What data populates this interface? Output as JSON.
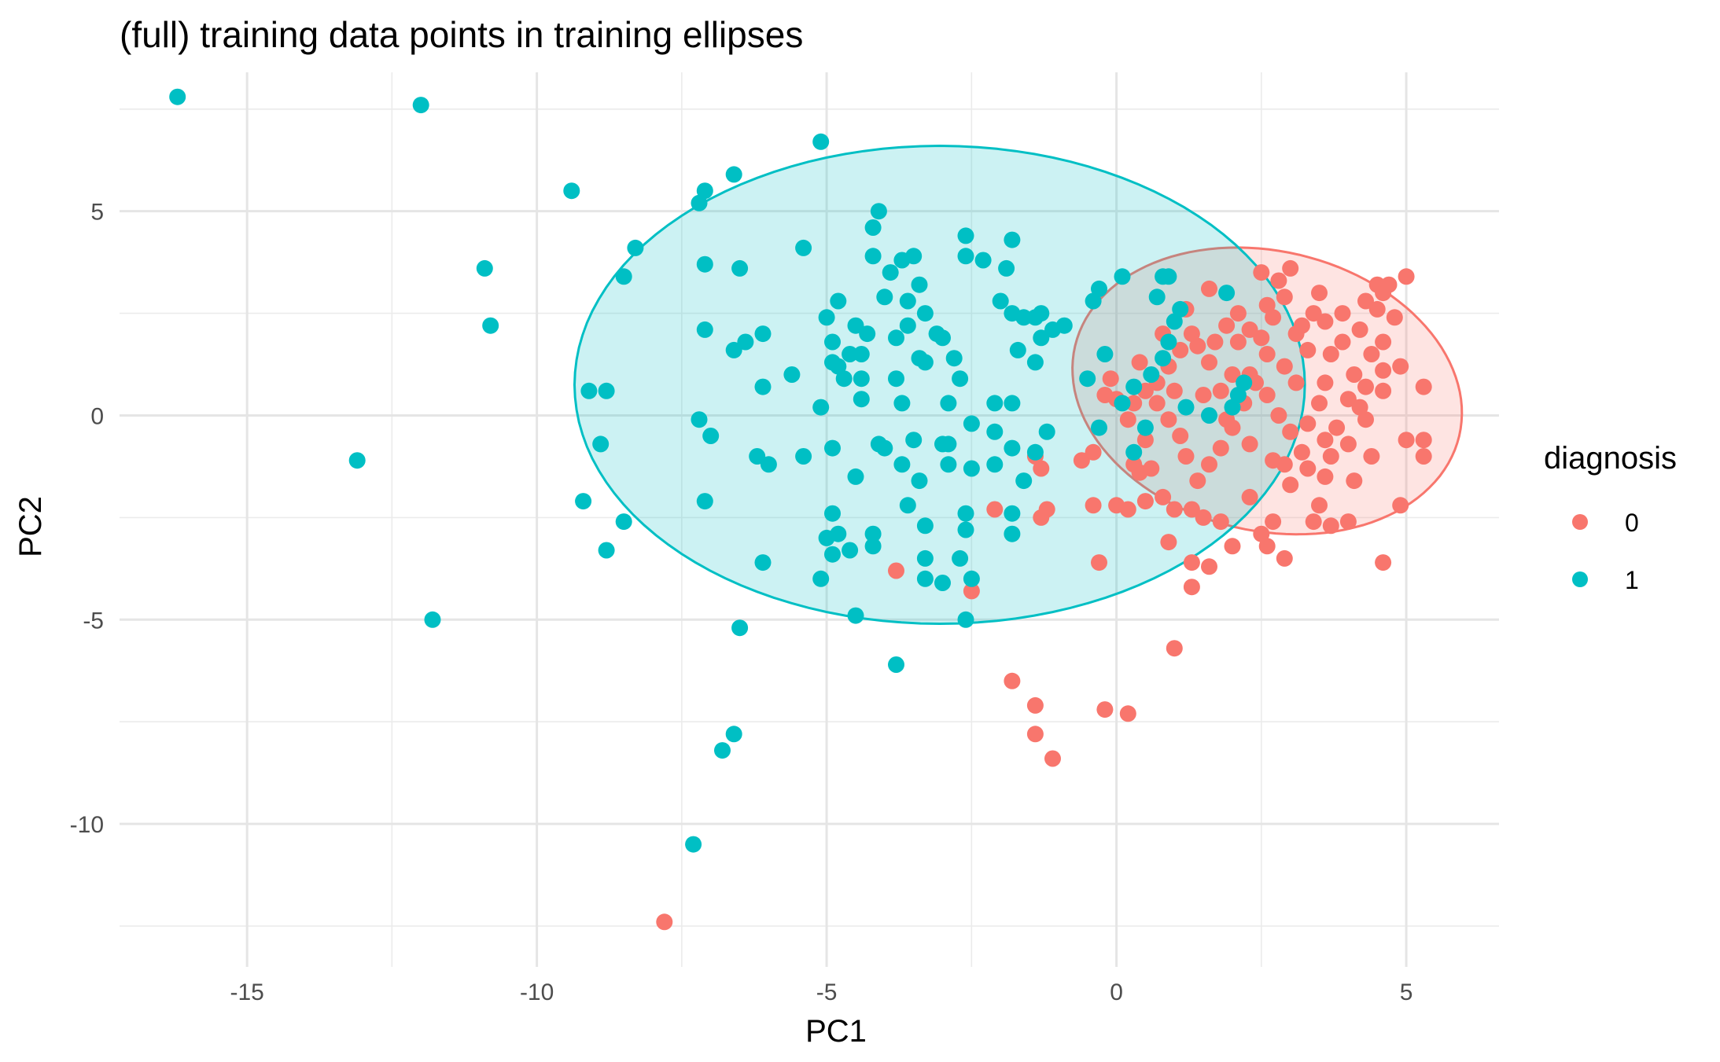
{
  "chart_data": {
    "type": "scatter",
    "title": "(full) training data points in training ellipses",
    "xlabel": "PC1",
    "ylabel": "PC2",
    "xlim": [
      -17.2,
      6.6
    ],
    "ylim": [
      -13.5,
      8.4
    ],
    "x_ticks": [
      -15,
      -10,
      -5,
      0,
      5
    ],
    "x_tick_labels": [
      "-15",
      "-10",
      "-5",
      "0",
      "5"
    ],
    "y_ticks": [
      5,
      0,
      -5,
      -10
    ],
    "y_tick_labels": [
      "5",
      "0",
      "-5",
      "-10"
    ],
    "grid": true,
    "legend": {
      "title": "diagnosis",
      "position": "right",
      "entries": [
        {
          "label": "0",
          "color": "#F8766D"
        },
        {
          "label": "1",
          "color": "#00BFC4"
        }
      ]
    },
    "series": [
      {
        "name": "0",
        "color": "#F8766D",
        "ellipse": {
          "center": [
            2.6,
            0.6
          ],
          "semi_axes": [
            3.15,
            3.7
          ],
          "rotation_deg": 37
        },
        "points": [
          [
            -7.8,
            -12.4
          ],
          [
            -1.8,
            -6.5
          ],
          [
            -1.4,
            -7.1
          ],
          [
            -1.4,
            -7.8
          ],
          [
            -1.1,
            -8.4
          ],
          [
            -0.2,
            -7.2
          ],
          [
            0.2,
            -7.3
          ],
          [
            1.0,
            -5.7
          ],
          [
            -3.8,
            -3.8
          ],
          [
            -2.5,
            -4.3
          ],
          [
            -2.1,
            -2.3
          ],
          [
            -1.3,
            -2.5
          ],
          [
            -1.2,
            -2.3
          ],
          [
            -1.3,
            -1.3
          ],
          [
            -1.4,
            -1.0
          ],
          [
            -0.6,
            -1.1
          ],
          [
            -0.4,
            -0.9
          ],
          [
            -0.4,
            -2.2
          ],
          [
            -0.3,
            -3.6
          ],
          [
            0.0,
            -2.2
          ],
          [
            0.2,
            -2.3
          ],
          [
            0.4,
            -1.4
          ],
          [
            0.5,
            -2.1
          ],
          [
            0.6,
            -1.3
          ],
          [
            0.8,
            -2.0
          ],
          [
            1.0,
            -2.3
          ],
          [
            1.3,
            -2.3
          ],
          [
            1.5,
            -2.5
          ],
          [
            0.9,
            -3.1
          ],
          [
            1.3,
            -3.6
          ],
          [
            1.3,
            -4.2
          ],
          [
            1.6,
            -3.7
          ],
          [
            2.0,
            -3.2
          ],
          [
            1.8,
            -2.6
          ],
          [
            2.3,
            -2.0
          ],
          [
            2.5,
            -2.9
          ],
          [
            2.7,
            -2.6
          ],
          [
            2.6,
            -3.2
          ],
          [
            2.9,
            -3.5
          ],
          [
            3.4,
            -2.6
          ],
          [
            3.0,
            -1.7
          ],
          [
            2.9,
            -1.2
          ],
          [
            3.3,
            -1.3
          ],
          [
            3.6,
            -1.5
          ],
          [
            3.5,
            -2.2
          ],
          [
            3.7,
            -2.7
          ],
          [
            4.0,
            -2.6
          ],
          [
            4.1,
            -1.6
          ],
          [
            4.4,
            -1.0
          ],
          [
            4.6,
            -3.6
          ],
          [
            4.9,
            -2.2
          ],
          [
            5.0,
            -0.6
          ],
          [
            5.3,
            -0.6
          ],
          [
            5.3,
            -1.0
          ],
          [
            5.0,
            3.4
          ],
          [
            4.5,
            3.2
          ],
          [
            4.3,
            2.8
          ],
          [
            4.6,
            3.0
          ],
          [
            4.7,
            3.2
          ],
          [
            4.8,
            2.4
          ],
          [
            4.6,
            1.8
          ],
          [
            4.6,
            1.1
          ],
          [
            4.3,
            0.7
          ],
          [
            4.3,
            -0.1
          ],
          [
            4.6,
            0.6
          ],
          [
            4.9,
            1.2
          ],
          [
            5.3,
            0.7
          ],
          [
            4.1,
            1.0
          ],
          [
            3.9,
            1.8
          ],
          [
            3.6,
            2.3
          ],
          [
            3.4,
            2.5
          ],
          [
            3.3,
            1.6
          ],
          [
            3.1,
            2.0
          ],
          [
            2.9,
            2.9
          ],
          [
            2.8,
            3.3
          ],
          [
            2.7,
            2.4
          ],
          [
            2.5,
            1.9
          ],
          [
            2.3,
            2.1
          ],
          [
            2.1,
            1.8
          ],
          [
            2.0,
            1.0
          ],
          [
            1.8,
            0.6
          ],
          [
            1.6,
            1.3
          ],
          [
            1.4,
            1.7
          ],
          [
            1.3,
            2.0
          ],
          [
            1.1,
            1.6
          ],
          [
            0.9,
            1.2
          ],
          [
            0.7,
            0.8
          ],
          [
            0.5,
            0.6
          ],
          [
            0.3,
            0.3
          ],
          [
            0.2,
            -0.1
          ],
          [
            0.0,
            0.4
          ],
          [
            -0.2,
            0.5
          ],
          [
            -0.1,
            0.9
          ],
          [
            0.4,
            1.3
          ],
          [
            0.8,
            2.0
          ],
          [
            1.2,
            2.6
          ],
          [
            1.6,
            3.1
          ],
          [
            2.1,
            2.5
          ],
          [
            2.5,
            3.5
          ],
          [
            3.0,
            3.6
          ],
          [
            3.5,
            3.0
          ],
          [
            3.9,
            2.5
          ],
          [
            4.2,
            2.1
          ],
          [
            4.0,
            0.4
          ],
          [
            3.8,
            -0.3
          ],
          [
            3.6,
            -0.6
          ],
          [
            3.3,
            -0.2
          ],
          [
            3.0,
            -0.4
          ],
          [
            2.8,
            0.0
          ],
          [
            2.6,
            0.5
          ],
          [
            2.4,
            0.8
          ],
          [
            2.2,
            0.3
          ],
          [
            2.0,
            -0.3
          ],
          [
            1.8,
            -0.8
          ],
          [
            1.6,
            -1.2
          ],
          [
            1.4,
            -1.6
          ],
          [
            1.2,
            -1.0
          ],
          [
            1.1,
            -0.5
          ],
          [
            0.9,
            -0.1
          ],
          [
            0.7,
            0.3
          ],
          [
            0.5,
            -0.6
          ],
          [
            0.3,
            -1.2
          ],
          [
            1.0,
            0.6
          ],
          [
            1.5,
            0.5
          ],
          [
            1.9,
            -0.1
          ],
          [
            2.3,
            -0.7
          ],
          [
            2.7,
            -1.1
          ],
          [
            3.2,
            -0.9
          ],
          [
            3.7,
            -1.0
          ],
          [
            4.0,
            -0.7
          ],
          [
            4.2,
            0.2
          ],
          [
            3.5,
            0.3
          ],
          [
            3.1,
            0.8
          ],
          [
            2.9,
            1.2
          ],
          [
            2.6,
            1.5
          ],
          [
            2.3,
            1.0
          ],
          [
            1.7,
            1.8
          ],
          [
            1.9,
            2.2
          ],
          [
            2.6,
            2.7
          ],
          [
            3.2,
            2.2
          ],
          [
            3.7,
            1.5
          ],
          [
            4.4,
            1.5
          ],
          [
            4.5,
            2.6
          ],
          [
            3.6,
            0.8
          ]
        ]
      },
      {
        "name": "1",
        "color": "#00BFC4",
        "ellipse": {
          "center": [
            -3.05,
            0.75
          ],
          "semi_axes": [
            6.3,
            5.85
          ],
          "rotation_deg": 0
        },
        "points": [
          [
            -16.2,
            7.8
          ],
          [
            -12.0,
            7.6
          ],
          [
            -9.4,
            5.5
          ],
          [
            -10.9,
            3.6
          ],
          [
            -10.8,
            2.2
          ],
          [
            -13.1,
            -1.1
          ],
          [
            -11.8,
            -5.0
          ],
          [
            -9.1,
            0.6
          ],
          [
            -8.9,
            -0.7
          ],
          [
            -8.8,
            0.6
          ],
          [
            -9.2,
            -2.1
          ],
          [
            -8.8,
            -3.3
          ],
          [
            -8.5,
            -2.6
          ],
          [
            -8.5,
            3.4
          ],
          [
            -8.3,
            4.1
          ],
          [
            -7.2,
            5.2
          ],
          [
            -7.1,
            5.5
          ],
          [
            -7.1,
            3.7
          ],
          [
            -7.1,
            2.1
          ],
          [
            -7.2,
            -0.1
          ],
          [
            -7.0,
            -0.5
          ],
          [
            -7.1,
            -2.1
          ],
          [
            -6.6,
            5.9
          ],
          [
            -6.5,
            3.6
          ],
          [
            -6.6,
            1.6
          ],
          [
            -6.4,
            1.8
          ],
          [
            -6.1,
            2.0
          ],
          [
            -6.1,
            0.7
          ],
          [
            -6.2,
            -1.0
          ],
          [
            -6.0,
            -1.2
          ],
          [
            -6.1,
            -3.6
          ],
          [
            -5.6,
            1.0
          ],
          [
            -5.4,
            -1.0
          ],
          [
            -5.1,
            -4.0
          ],
          [
            -5.4,
            4.1
          ],
          [
            -5.1,
            6.7
          ],
          [
            -5.0,
            2.4
          ],
          [
            -4.9,
            1.8
          ],
          [
            -4.8,
            2.8
          ],
          [
            -4.9,
            1.3
          ],
          [
            -4.8,
            1.2
          ],
          [
            -4.7,
            0.9
          ],
          [
            -4.6,
            1.5
          ],
          [
            -4.5,
            2.2
          ],
          [
            -4.4,
            1.5
          ],
          [
            -4.4,
            0.9
          ],
          [
            -4.3,
            2.0
          ],
          [
            -4.1,
            5.0
          ],
          [
            -4.2,
            3.9
          ],
          [
            -4.2,
            4.6
          ],
          [
            -4.0,
            2.9
          ],
          [
            -3.9,
            3.5
          ],
          [
            -3.8,
            1.9
          ],
          [
            -3.8,
            0.9
          ],
          [
            -3.6,
            2.8
          ],
          [
            -3.7,
            3.8
          ],
          [
            -3.5,
            3.9
          ],
          [
            -3.6,
            2.2
          ],
          [
            -3.4,
            3.2
          ],
          [
            -3.3,
            2.5
          ],
          [
            -3.4,
            1.4
          ],
          [
            -3.3,
            1.3
          ],
          [
            -3.1,
            2.0
          ],
          [
            -3.0,
            1.9
          ],
          [
            -2.8,
            1.4
          ],
          [
            -2.7,
            0.9
          ],
          [
            -2.9,
            0.3
          ],
          [
            -2.6,
            4.4
          ],
          [
            -2.6,
            3.9
          ],
          [
            -2.3,
            3.8
          ],
          [
            -2.0,
            2.8
          ],
          [
            -1.9,
            3.6
          ],
          [
            -1.8,
            4.3
          ],
          [
            -1.8,
            2.5
          ],
          [
            -1.7,
            1.6
          ],
          [
            -1.6,
            2.4
          ],
          [
            -1.4,
            2.4
          ],
          [
            -1.3,
            2.5
          ],
          [
            -1.3,
            1.9
          ],
          [
            -1.4,
            1.3
          ],
          [
            -1.1,
            2.1
          ],
          [
            -0.9,
            2.2
          ],
          [
            -0.4,
            2.8
          ],
          [
            -0.3,
            3.1
          ],
          [
            0.1,
            3.4
          ],
          [
            -0.2,
            1.5
          ],
          [
            -0.5,
            0.9
          ],
          [
            0.3,
            0.7
          ],
          [
            -2.1,
            0.3
          ],
          [
            -1.8,
            0.3
          ],
          [
            -1.8,
            -0.8
          ],
          [
            -1.6,
            -1.6
          ],
          [
            -1.2,
            -0.4
          ],
          [
            -1.4,
            -0.9
          ],
          [
            -1.8,
            -2.4
          ],
          [
            -1.8,
            -2.9
          ],
          [
            -2.1,
            -1.2
          ],
          [
            -2.1,
            -0.4
          ],
          [
            -2.5,
            -0.2
          ],
          [
            -2.5,
            -1.3
          ],
          [
            -2.6,
            -2.4
          ],
          [
            -2.6,
            -2.8
          ],
          [
            -2.7,
            -3.5
          ],
          [
            -2.5,
            -4.0
          ],
          [
            -2.6,
            -5.0
          ],
          [
            -2.9,
            -1.2
          ],
          [
            -2.9,
            -0.7
          ],
          [
            -3.0,
            -0.7
          ],
          [
            -3.0,
            -4.1
          ],
          [
            -3.3,
            -4.0
          ],
          [
            -3.3,
            -3.5
          ],
          [
            -3.3,
            -2.7
          ],
          [
            -3.4,
            -1.6
          ],
          [
            -3.5,
            -0.6
          ],
          [
            -3.6,
            -2.2
          ],
          [
            -3.7,
            -1.2
          ],
          [
            -3.7,
            0.3
          ],
          [
            -4.0,
            -0.8
          ],
          [
            -4.1,
            -0.7
          ],
          [
            -4.2,
            -2.9
          ],
          [
            -4.2,
            -3.2
          ],
          [
            -4.4,
            0.4
          ],
          [
            -4.5,
            -1.5
          ],
          [
            -4.6,
            -3.3
          ],
          [
            -4.8,
            -2.9
          ],
          [
            -4.9,
            -3.4
          ],
          [
            -5.0,
            -3.0
          ],
          [
            -4.9,
            -2.4
          ],
          [
            -4.9,
            -0.8
          ],
          [
            -5.1,
            0.2
          ],
          [
            -6.5,
            -5.2
          ],
          [
            -4.5,
            -4.9
          ],
          [
            -3.8,
            -6.1
          ],
          [
            -6.6,
            -7.8
          ],
          [
            -6.8,
            -8.2
          ],
          [
            -7.3,
            -10.5
          ],
          [
            0.6,
            1.0
          ],
          [
            0.8,
            1.4
          ],
          [
            0.9,
            1.8
          ],
          [
            1.0,
            2.3
          ],
          [
            1.1,
            2.6
          ],
          [
            0.8,
            3.4
          ],
          [
            0.9,
            3.4
          ],
          [
            0.7,
            2.9
          ],
          [
            1.9,
            3.0
          ],
          [
            2.0,
            0.2
          ],
          [
            2.2,
            0.8
          ],
          [
            2.1,
            0.5
          ],
          [
            1.6,
            0.0
          ],
          [
            1.2,
            0.2
          ],
          [
            0.5,
            -0.3
          ],
          [
            0.3,
            -0.9
          ],
          [
            0.1,
            0.3
          ],
          [
            -0.3,
            -0.3
          ]
        ]
      }
    ]
  }
}
